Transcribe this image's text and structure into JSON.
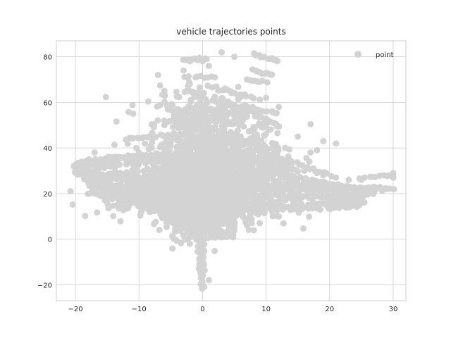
{
  "chart_data": {
    "type": "scatter",
    "title": "vehicle trajectories points",
    "xlabel": "",
    "ylabel": "",
    "xlim": [
      -23,
      32
    ],
    "ylim": [
      -27,
      87
    ],
    "xticks": [
      -20,
      -10,
      0,
      10,
      20,
      30
    ],
    "yticks": [
      -20,
      0,
      20,
      40,
      60,
      80
    ],
    "xtick_labels": [
      "−20",
      "−10",
      "0",
      "10",
      "20",
      "30"
    ],
    "ytick_labels": [
      "−20",
      "0",
      "20",
      "40",
      "60",
      "80"
    ],
    "grid": true,
    "legend": {
      "placement": "top-right"
    },
    "series": [
      {
        "name": "point",
        "color": "#d3d3d3",
        "trajectories": [
          {
            "kind": "ellipse",
            "cx": -3,
            "cy": 32,
            "rx": 17,
            "ry": 5,
            "t0": 0.3,
            "t1": 6.0,
            "n": 95
          },
          {
            "kind": "ellipse",
            "cx": -4,
            "cy": 30,
            "rx": 16,
            "ry": 5,
            "t0": 0.5,
            "t1": 6.0,
            "n": 90
          },
          {
            "kind": "ellipse",
            "cx": -5,
            "cy": 28,
            "rx": 13,
            "ry": 6,
            "t0": 0.5,
            "t1": 6.0,
            "n": 80
          },
          {
            "kind": "ellipse",
            "cx": -7,
            "cy": 25,
            "rx": 11,
            "ry": 5,
            "t0": 0.5,
            "t1": 6.0,
            "n": 70
          },
          {
            "kind": "ellipse",
            "cx": 10,
            "cy": 18,
            "rx": 15,
            "ry": 4,
            "t0": 0,
            "t1": 6.28,
            "n": 110
          },
          {
            "kind": "ellipse",
            "cx": 8,
            "cy": 21,
            "rx": 19,
            "ry": 3,
            "t0": 0,
            "t1": 6.28,
            "n": 120
          },
          {
            "kind": "ellipse",
            "cx": 12,
            "cy": 16,
            "rx": 13,
            "ry": 3,
            "t0": 0,
            "t1": 6.28,
            "n": 100
          },
          {
            "kind": "ellipse",
            "cx": 5,
            "cy": 20,
            "rx": 20,
            "ry": 6,
            "t0": 0,
            "t1": 6.28,
            "n": 120
          },
          {
            "kind": "line",
            "x0": 0,
            "y0": -22,
            "x1": 0,
            "y1": 10,
            "n": 45
          },
          {
            "kind": "line",
            "x0": -0.5,
            "y0": -15,
            "x1": -0.3,
            "y1": 15,
            "n": 30
          },
          {
            "kind": "line",
            "x0": -3,
            "y0": 79,
            "x1": 1,
            "y1": 79,
            "n": 10
          },
          {
            "kind": "line",
            "x0": -3,
            "y0": 71,
            "x1": 2,
            "y1": 71,
            "n": 10
          },
          {
            "kind": "line",
            "x0": 8,
            "y0": 81,
            "x1": 12,
            "y1": 78,
            "n": 14
          },
          {
            "kind": "line",
            "x0": 8,
            "y0": 74,
            "x1": 11,
            "y1": 72,
            "n": 10
          },
          {
            "kind": "line",
            "x0": 7,
            "y0": 70,
            "x1": 10,
            "y1": 69,
            "n": 8
          },
          {
            "kind": "line",
            "x0": -3,
            "y0": 65,
            "x1": 0,
            "y1": 64,
            "n": 8
          },
          {
            "kind": "line",
            "x0": 1,
            "y0": 67,
            "x1": 8,
            "y1": 62,
            "n": 16
          },
          {
            "kind": "line",
            "x0": -6,
            "y0": 60,
            "x1": 0,
            "y1": 40,
            "n": 24
          },
          {
            "kind": "line",
            "x0": 2,
            "y0": 60,
            "x1": 12,
            "y1": 55,
            "n": 22
          },
          {
            "kind": "line",
            "x0": 6,
            "y0": 58,
            "x1": 12,
            "y1": 50,
            "n": 16
          },
          {
            "kind": "line",
            "x0": -18,
            "y0": 20,
            "x1": -8,
            "y1": 21,
            "n": 22
          },
          {
            "kind": "line",
            "x0": -15,
            "y0": 18,
            "x1": 5,
            "y1": 14,
            "n": 40
          },
          {
            "kind": "line",
            "x0": -10,
            "y0": 14,
            "x1": 5,
            "y1": 10,
            "n": 30
          },
          {
            "kind": "line",
            "x0": 8,
            "y0": 24,
            "x1": 30,
            "y1": 22,
            "n": 44
          },
          {
            "kind": "line",
            "x0": 10,
            "y0": 30,
            "x1": 24,
            "y1": 22,
            "n": 30
          },
          {
            "kind": "line",
            "x0": 10,
            "y0": 38,
            "x1": 20,
            "y1": 28,
            "n": 20
          },
          {
            "kind": "line",
            "x0": 25,
            "y0": 27,
            "x1": 30,
            "y1": 28,
            "n": 10
          },
          {
            "kind": "line",
            "x0": 3,
            "y0": 46,
            "x1": 10,
            "y1": 40,
            "n": 18
          },
          {
            "kind": "line",
            "x0": -3,
            "y0": 5,
            "x1": 5,
            "y1": 2,
            "n": 20
          },
          {
            "kind": "line",
            "x0": -2,
            "y0": 1,
            "x1": 4,
            "y1": 1,
            "n": 14
          },
          {
            "kind": "line",
            "x0": -15,
            "y0": 36,
            "x1": -5,
            "y1": 36,
            "n": 24
          },
          {
            "kind": "line",
            "x0": -12,
            "y0": 44,
            "x1": -3,
            "y1": 46,
            "n": 20
          },
          {
            "kind": "line",
            "x0": -8,
            "y0": 25,
            "x1": 8,
            "y1": 15,
            "n": 35
          },
          {
            "kind": "line",
            "x0": 5,
            "y0": 35,
            "x1": 15,
            "y1": 30,
            "n": 24
          },
          {
            "kind": "blob",
            "cx": 0,
            "cy": 35,
            "sx": 4.5,
            "sy": 13,
            "n": 650
          },
          {
            "kind": "blob",
            "cx": 0,
            "cy": 20,
            "sx": 7,
            "sy": 6,
            "n": 420
          },
          {
            "kind": "blob",
            "cx": 0,
            "cy": 10,
            "sx": 3,
            "sy": 5,
            "n": 260
          },
          {
            "kind": "blob",
            "cx": 5,
            "cy": 32,
            "sx": 5,
            "sy": 9,
            "n": 300
          },
          {
            "kind": "blob",
            "cx": -4,
            "cy": 22,
            "sx": 6,
            "sy": 6,
            "n": 250
          },
          {
            "kind": "blob",
            "cx": 2,
            "cy": 55,
            "sx": 3.5,
            "sy": 5,
            "n": 140
          }
        ],
        "points": [
          [
            -7,
            72
          ],
          [
            -6,
            65
          ],
          [
            -3,
            74
          ],
          [
            -2,
            78
          ],
          [
            0,
            78
          ],
          [
            1,
            76
          ],
          [
            -2,
            68
          ],
          [
            10,
            62
          ],
          [
            12,
            58
          ],
          [
            15,
            45
          ],
          [
            19,
            43
          ],
          [
            21,
            42
          ],
          [
            18,
            39
          ],
          [
            17,
            38
          ],
          [
            13,
            40
          ],
          [
            10,
            37
          ],
          [
            12,
            34
          ],
          [
            14,
            33
          ],
          [
            16,
            30
          ],
          [
            18,
            29
          ],
          [
            19,
            28
          ],
          [
            21,
            27
          ],
          [
            23,
            26
          ],
          [
            25,
            26
          ],
          [
            27,
            23
          ],
          [
            29,
            22
          ],
          [
            30,
            29
          ],
          [
            30,
            27
          ],
          [
            -6,
            50
          ],
          [
            -6,
            52
          ],
          [
            -5,
            42
          ],
          [
            -17,
            38
          ],
          [
            -19,
            34
          ],
          [
            -19,
            31
          ],
          [
            -17,
            21
          ],
          [
            -16,
            19
          ],
          [
            -13,
            17
          ],
          [
            -9,
            15
          ],
          [
            -5,
            11
          ],
          [
            -2,
            -2
          ],
          [
            1,
            -18
          ],
          [
            0,
            -21
          ],
          [
            2,
            2
          ],
          [
            5,
            5
          ],
          [
            7,
            6
          ],
          [
            9,
            7
          ],
          [
            11,
            12
          ],
          [
            3,
            82
          ],
          [
            5,
            80
          ],
          [
            -4,
            57
          ],
          [
            -8,
            40
          ],
          [
            -10,
            38
          ],
          [
            9,
            32
          ],
          [
            11,
            31
          ],
          [
            -1,
            12
          ],
          [
            1,
            8
          ],
          [
            -1,
            6
          ],
          [
            2,
            14
          ],
          [
            4,
            26
          ],
          [
            6,
            45
          ],
          [
            8,
            48
          ],
          [
            10,
            50
          ]
        ]
      }
    ]
  }
}
